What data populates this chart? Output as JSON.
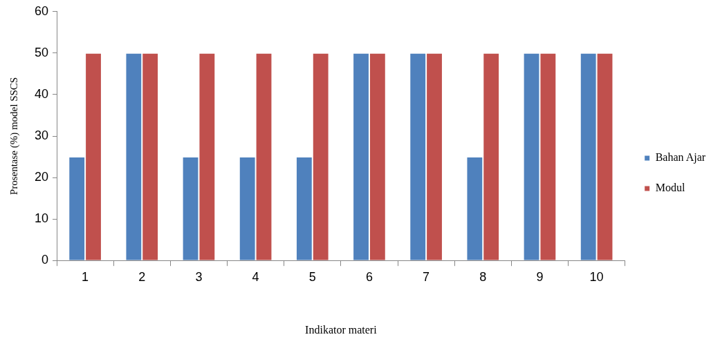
{
  "chart_data": {
    "type": "bar",
    "xlabel": "Indikator materi",
    "ylabel": "Prosentase (%) model SSCS",
    "categories": [
      "1",
      "2",
      "3",
      "4",
      "5",
      "6",
      "7",
      "8",
      "9",
      "10"
    ],
    "series": [
      {
        "name": "Bahan Ajar",
        "color": "#4f81bd",
        "values": [
          25,
          50,
          25,
          25,
          25,
          50,
          50,
          25,
          50,
          50
        ]
      },
      {
        "name": "Modul",
        "color": "#c0504d",
        "values": [
          50,
          50,
          50,
          50,
          50,
          50,
          50,
          50,
          50,
          50
        ]
      }
    ],
    "ylim": [
      0,
      60
    ],
    "yticks": [
      0,
      10,
      20,
      30,
      40,
      50,
      60
    ],
    "grid": false,
    "legend": "right"
  }
}
